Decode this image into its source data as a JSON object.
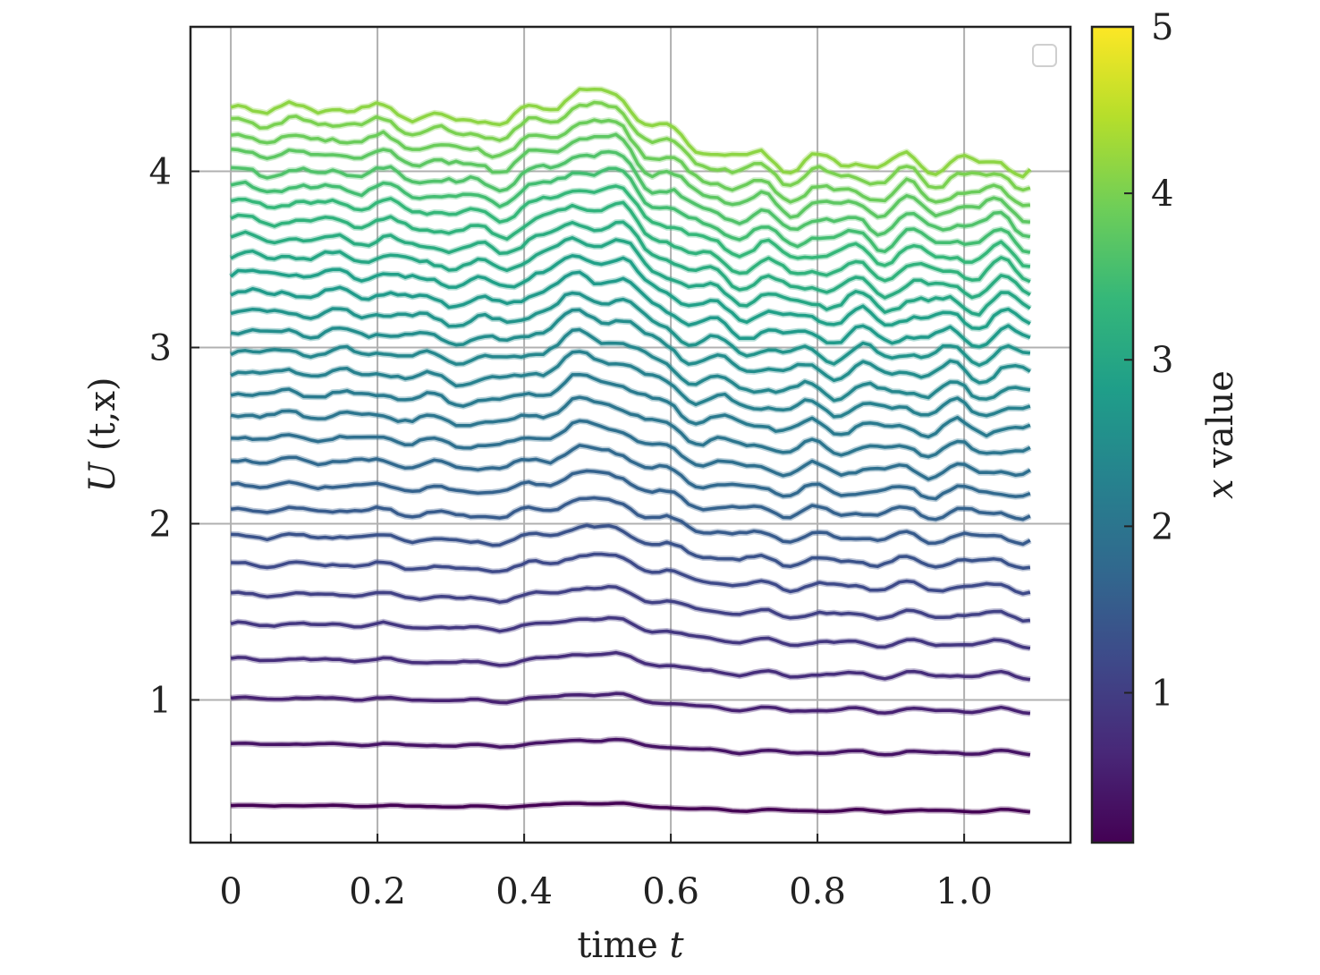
{
  "chart_data": {
    "type": "line",
    "xlabel_text": "time ",
    "xlabel_var": "t",
    "ylabel_func": "U",
    "ylabel_args": " (t,x)",
    "colorbar_label_var": "x",
    "colorbar_label_text": " value",
    "xlim": [
      -0.055,
      1.145
    ],
    "ylim": [
      0.19,
      4.82
    ],
    "colorbar_range": [
      0.1,
      5.0
    ],
    "xticks": [
      0,
      0.2,
      0.4,
      0.6,
      0.8,
      1.0
    ],
    "xtick_labels": [
      "0",
      "0.2",
      "0.4",
      "0.6",
      "0.8",
      "1.0"
    ],
    "yticks": [
      1,
      2,
      3,
      4
    ],
    "ytick_labels": [
      "1",
      "2",
      "3",
      "4"
    ],
    "colorbar_ticks": [
      1,
      2,
      3,
      4,
      5
    ],
    "colorbar_tick_labels": [
      "1",
      "2",
      "3",
      "4",
      "5"
    ],
    "grid": true,
    "legend": "top-right, empty",
    "colormap": "viridis",
    "colormap_stops": [
      "#440154",
      "#482878",
      "#3e4989",
      "#31688e",
      "#26828e",
      "#1f9e89",
      "#35b779",
      "#6ece58",
      "#b5de2b",
      "#fde725"
    ],
    "t_start": 0.0,
    "t_end": 1.09,
    "pulse_center": 0.5,
    "pulse_width": 0.09,
    "series": [
      {
        "x": 0.1,
        "start": 0.4,
        "end": 0.37,
        "peak": 0.03
      },
      {
        "x": 0.35,
        "start": 0.75,
        "end": 0.7,
        "peak": 0.05
      },
      {
        "x": 0.55,
        "start": 1.01,
        "end": 0.94,
        "peak": 0.06
      },
      {
        "x": 0.75,
        "start": 1.23,
        "end": 1.14,
        "peak": 0.08
      },
      {
        "x": 0.9,
        "start": 1.43,
        "end": 1.32,
        "peak": 0.09
      },
      {
        "x": 1.05,
        "start": 1.6,
        "end": 1.48,
        "peak": 0.1
      },
      {
        "x": 1.2,
        "start": 1.77,
        "end": 1.64,
        "peak": 0.12
      },
      {
        "x": 1.35,
        "start": 1.93,
        "end": 1.78,
        "peak": 0.13
      },
      {
        "x": 1.5,
        "start": 2.08,
        "end": 1.92,
        "peak": 0.14
      },
      {
        "x": 1.62,
        "start": 2.22,
        "end": 2.06,
        "peak": 0.15
      },
      {
        "x": 1.75,
        "start": 2.36,
        "end": 2.18,
        "peak": 0.16
      },
      {
        "x": 1.87,
        "start": 2.49,
        "end": 2.3,
        "peak": 0.17
      },
      {
        "x": 2.0,
        "start": 2.62,
        "end": 2.42,
        "peak": 0.18
      },
      {
        "x": 2.12,
        "start": 2.74,
        "end": 2.54,
        "peak": 0.19
      },
      {
        "x": 2.25,
        "start": 2.86,
        "end": 2.65,
        "peak": 0.2
      },
      {
        "x": 2.37,
        "start": 2.98,
        "end": 2.75,
        "peak": 0.21
      },
      {
        "x": 2.5,
        "start": 3.09,
        "end": 2.86,
        "peak": 0.22
      },
      {
        "x": 2.62,
        "start": 3.2,
        "end": 2.96,
        "peak": 0.22
      },
      {
        "x": 2.75,
        "start": 3.31,
        "end": 3.06,
        "peak": 0.23
      },
      {
        "x": 2.87,
        "start": 3.42,
        "end": 3.16,
        "peak": 0.23
      },
      {
        "x": 3.0,
        "start": 3.52,
        "end": 3.25,
        "peak": 0.24
      },
      {
        "x": 3.12,
        "start": 3.62,
        "end": 3.34,
        "peak": 0.24
      },
      {
        "x": 3.25,
        "start": 3.72,
        "end": 3.43,
        "peak": 0.25
      },
      {
        "x": 3.37,
        "start": 3.82,
        "end": 3.52,
        "peak": 0.25
      },
      {
        "x": 3.5,
        "start": 3.91,
        "end": 3.61,
        "peak": 0.26
      },
      {
        "x": 3.62,
        "start": 4.0,
        "end": 3.7,
        "peak": 0.26
      },
      {
        "x": 3.75,
        "start": 4.1,
        "end": 3.79,
        "peak": 0.26
      },
      {
        "x": 3.87,
        "start": 4.19,
        "end": 3.87,
        "peak": 0.26
      },
      {
        "x": 4.0,
        "start": 4.28,
        "end": 3.96,
        "peak": 0.26
      },
      {
        "x": 4.15,
        "start": 4.36,
        "end": 4.04,
        "peak": 0.26
      }
    ]
  }
}
